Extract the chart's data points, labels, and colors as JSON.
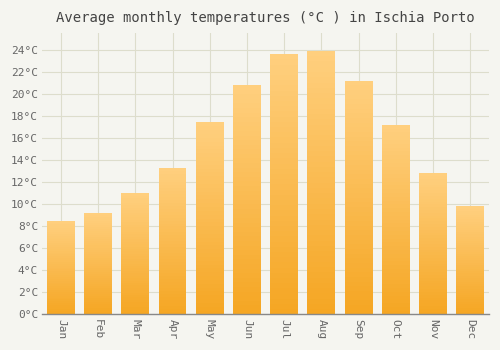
{
  "title": "Average monthly temperatures (°C ) in Ischia Porto",
  "months": [
    "Jan",
    "Feb",
    "Mar",
    "Apr",
    "May",
    "Jun",
    "Jul",
    "Aug",
    "Sep",
    "Oct",
    "Nov",
    "Dec"
  ],
  "temperatures": [
    8.5,
    9.2,
    11.0,
    13.3,
    17.4,
    20.8,
    23.6,
    23.9,
    21.2,
    17.2,
    12.8,
    9.8
  ],
  "bar_color_bottom": "#F5A623",
  "bar_color_top": "#FFD080",
  "background_color": "#F5F5F0",
  "grid_color": "#DDDDCC",
  "ytick_labels": [
    "0°C",
    "2°C",
    "4°C",
    "6°C",
    "8°C",
    "10°C",
    "12°C",
    "14°C",
    "16°C",
    "18°C",
    "20°C",
    "22°C",
    "24°C"
  ],
  "ytick_values": [
    0,
    2,
    4,
    6,
    8,
    10,
    12,
    14,
    16,
    18,
    20,
    22,
    24
  ],
  "ylim": [
    0,
    25.5
  ],
  "title_fontsize": 10,
  "tick_fontsize": 8,
  "title_color": "#444444",
  "tick_color": "#666666",
  "bar_width": 0.75
}
